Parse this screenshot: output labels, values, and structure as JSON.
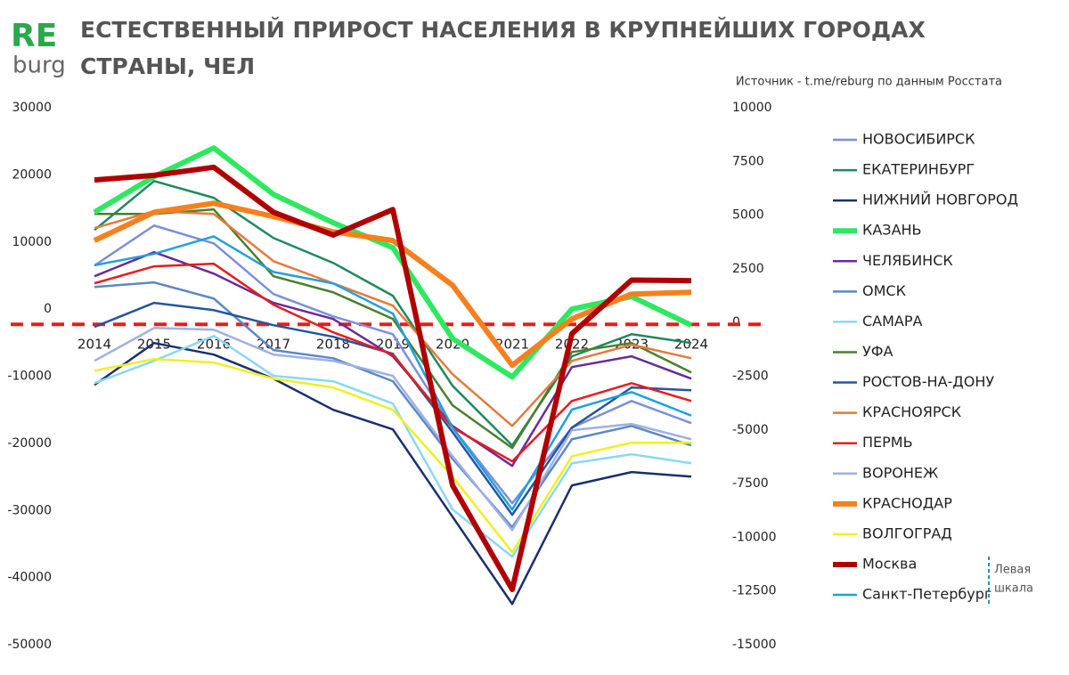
{
  "chart_data": {
    "type": "line",
    "logo_top": "RE",
    "logo_bottom": "burg",
    "title": [
      "ЕСТЕСТВЕННЫЙ ПРИРОСТ НАСЕЛЕНИЯ В КРУПНЕЙШИХ ГОРОДАХ",
      "СТРАНЫ, ЧЕЛ"
    ],
    "source": "Источник - t.me/reburg по данным Росстата",
    "annotation": [
      "Левая",
      "шкала"
    ],
    "categories": [
      "2014",
      "2015",
      "2016",
      "2017",
      "2018",
      "2019",
      "2020",
      "2021",
      "2022",
      "2023",
      "2024"
    ],
    "ylim": [
      -50000,
      30000
    ],
    "yticks": [
      -50000,
      -40000,
      -30000,
      -20000,
      -10000,
      0,
      10000,
      20000,
      30000
    ],
    "y2lim": [
      -15000,
      10000
    ],
    "y2ticks": [
      -15000,
      -12500,
      -10000,
      -7500,
      -5000,
      -2500,
      0,
      2500,
      5000,
      7500,
      10000
    ],
    "legend": "right",
    "series": [
      {
        "name": "НОВОСИБИРСК",
        "color": "#7b8fdc",
        "axis": "y2",
        "values": [
          2740,
          4600,
          3770,
          1410,
          370,
          -460,
          -4810,
          -8330,
          -4810,
          -3570,
          -4600
        ]
      },
      {
        "name": "ЕКАТЕРИНБУРГ",
        "color": "#1e8a5e",
        "axis": "y2",
        "values": [
          4390,
          6670,
          5890,
          4020,
          2860,
          1330,
          -2860,
          -5640,
          -1490,
          -460,
          -870
        ]
      },
      {
        "name": "НИЖНИЙ НОВГОРОД",
        "color": "#1a2f6e",
        "axis": "y2",
        "values": [
          -2820,
          -870,
          -1410,
          -2530,
          -3980,
          -4890,
          -8960,
          -13020,
          -7500,
          -6880,
          -7090
        ]
      },
      {
        "name": "КАЗАНЬ",
        "color": "#2ee860",
        "axis": "y2",
        "values": [
          5220,
          6880,
          8210,
          6050,
          4730,
          3570,
          -660,
          -2450,
          710,
          1290,
          -40
        ]
      },
      {
        "name": "ЧЕЛЯБИНСК",
        "color": "#6a2a9a",
        "axis": "y2",
        "values": [
          2240,
          3360,
          2360,
          1000,
          250,
          -1490,
          -4730,
          -6590,
          -1990,
          -1490,
          -2530
        ]
      },
      {
        "name": "ОМСК",
        "color": "#5b88c7",
        "axis": "y2",
        "values": [
          1740,
          1950,
          1200,
          -1200,
          -1580,
          -2650,
          -6260,
          -9450,
          -5350,
          -4730,
          -5640
        ]
      },
      {
        "name": "САМАРА",
        "color": "#8ad8f5",
        "axis": "y2",
        "values": [
          -2740,
          -1700,
          -540,
          -2400,
          -2650,
          -3690,
          -8620,
          -10820,
          -6470,
          -6050,
          -6470
        ]
      },
      {
        "name": "УФА",
        "color": "#4a7f2e",
        "axis": "y2",
        "values": [
          5140,
          5140,
          5350,
          2240,
          1490,
          250,
          -3770,
          -5760,
          -1290,
          -870,
          -2240
        ]
      },
      {
        "name": "РОСТОВ-НА-ДОНУ",
        "color": "#2456a0",
        "axis": "y2",
        "values": [
          -120,
          1000,
          660,
          -40,
          -580,
          -1370,
          -5020,
          -8870,
          -4810,
          -2940,
          -3070
        ]
      },
      {
        "name": "КРАСНОЯРСК",
        "color": "#e57a3c",
        "axis": "y2",
        "values": [
          4480,
          5270,
          5140,
          2940,
          1910,
          870,
          -2320,
          -4730,
          -1700,
          -950,
          -1580
        ]
      },
      {
        "name": "ПЕРМЬ",
        "color": "#e81c1c",
        "axis": "y2",
        "values": [
          1910,
          2700,
          2820,
          910,
          -370,
          -1410,
          -4810,
          -6380,
          -3570,
          -2740,
          -3570
        ]
      },
      {
        "name": "ВОРОНЕЖ",
        "color": "#a0b0e0",
        "axis": "y2",
        "values": [
          -1700,
          -170,
          -250,
          -1410,
          -1700,
          -2400,
          -6140,
          -9580,
          -4930,
          -4640,
          -5350
        ]
      },
      {
        "name": "КРАСНОДАР",
        "color": "#f5801e",
        "axis": "y2",
        "values": [
          3900,
          5220,
          5640,
          5020,
          4310,
          3900,
          1820,
          -1910,
          250,
          1410,
          1490
        ]
      },
      {
        "name": "ВОЛГОГРАД",
        "color": "#f0f020",
        "axis": "y2",
        "values": [
          -2160,
          -1620,
          -1780,
          -2530,
          -2940,
          -3980,
          -7090,
          -10610,
          -6140,
          -5510,
          -5510
        ]
      },
      {
        "name": "Москва",
        "color": "#b00000",
        "values": [
          19500,
          20200,
          21400,
          14700,
          11300,
          15100,
          -26000,
          -41500,
          -3400,
          4600,
          4500
        ]
      },
      {
        "name": "Санкт-Петербург",
        "color": "#1fa0e0",
        "values": [
          6800,
          8500,
          11100,
          5800,
          4100,
          -400,
          -17400,
          -29600,
          -14700,
          -12100,
          -15600
        ]
      }
    ]
  }
}
